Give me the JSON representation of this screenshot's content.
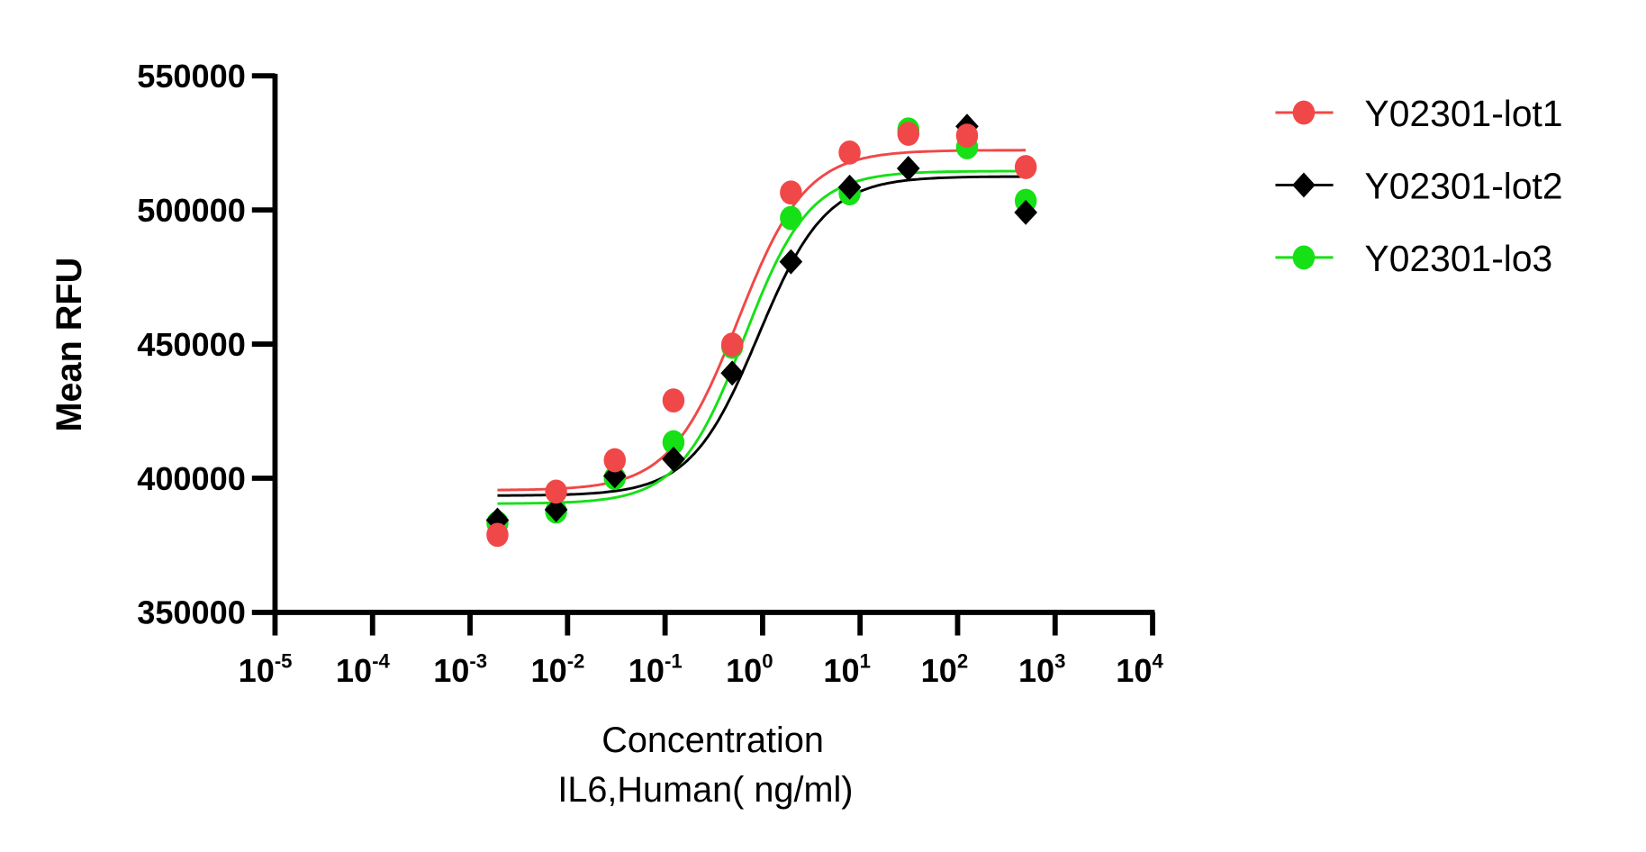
{
  "chart_data": {
    "type": "scatter",
    "title": "",
    "xlabel": "Concentration",
    "xlabel_line2": "IL6,Human( ng/ml)",
    "ylabel": "Mean RFU",
    "xscale": "log",
    "xlim": [
      1e-05,
      10000
    ],
    "ylim": [
      350000,
      550000
    ],
    "yticks": [
      "550000",
      "500000",
      "450000",
      "400000",
      "350000"
    ],
    "ytick_values": [
      550000,
      500000,
      450000,
      400000,
      350000
    ],
    "xtick_exponents": [
      "-5",
      "-4",
      "-3",
      "-2",
      "-1",
      "0",
      "1",
      "2",
      "3",
      "4"
    ],
    "xtick_base": "10",
    "grid": false,
    "legend_position": "right",
    "x": [
      500,
      125,
      31.25,
      7.8125,
      1.953,
      0.488,
      0.122,
      0.0305,
      0.00763,
      0.00191
    ],
    "series": [
      {
        "name": "Y02301-lot1",
        "color": "#f04848",
        "marker": "circle",
        "values": [
          516000,
          527700,
          528400,
          521400,
          506500,
          449800,
          429000,
          406700,
          395000,
          378900
        ],
        "fit": {
          "bottom": 395500,
          "top": 522300,
          "ec50": 0.56,
          "hill": 1.25
        }
      },
      {
        "name": "Y02301-lot2",
        "color": "#000000",
        "marker": "diamond",
        "values": [
          499100,
          531200,
          515500,
          508500,
          480700,
          439200,
          407100,
          400900,
          388300,
          384400
        ],
        "fit": {
          "bottom": 393500,
          "top": 512500,
          "ec50": 0.9,
          "hill": 1.25
        }
      },
      {
        "name": "Y02301-lo3",
        "color": "#16e016",
        "marker": "circle",
        "values": [
          503400,
          523400,
          530000,
          506200,
          497000,
          449000,
          413400,
          400100,
          387600,
          383300
        ],
        "fit": {
          "bottom": 390500,
          "top": 514500,
          "ec50": 0.65,
          "hill": 1.3
        }
      }
    ]
  }
}
